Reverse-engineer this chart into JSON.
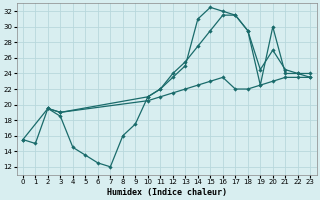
{
  "title": "",
  "xlabel": "Humidex (Indice chaleur)",
  "ylabel": "",
  "xlim": [
    -0.5,
    23.5
  ],
  "ylim": [
    11,
    33
  ],
  "yticks": [
    12,
    14,
    16,
    18,
    20,
    22,
    24,
    26,
    28,
    30,
    32
  ],
  "xticks": [
    0,
    1,
    2,
    3,
    4,
    5,
    6,
    7,
    8,
    9,
    10,
    11,
    12,
    13,
    14,
    15,
    16,
    17,
    18,
    19,
    20,
    21,
    22,
    23
  ],
  "bg_color": "#d8eef0",
  "grid_color": "#b8d8dc",
  "line_color": "#1a6b6b",
  "line1_x": [
    0,
    1,
    2,
    3,
    4,
    5,
    6,
    7,
    8,
    9,
    10,
    11,
    12,
    13,
    14,
    15,
    16,
    17,
    18,
    19,
    20,
    21,
    22,
    23
  ],
  "line1_y": [
    15.5,
    15.0,
    19.5,
    18.5,
    14.5,
    13.5,
    12.5,
    12.0,
    16.0,
    17.5,
    21.0,
    22.0,
    23.5,
    25.0,
    31.0,
    32.5,
    32.0,
    31.5,
    29.5,
    24.5,
    27.0,
    24.5,
    24.0,
    23.5
  ],
  "line2_x": [
    2,
    3,
    10,
    11,
    12,
    13,
    14,
    15,
    16,
    17,
    18,
    19,
    20,
    21,
    22,
    23
  ],
  "line2_y": [
    19.5,
    19.0,
    21.0,
    22.0,
    24.0,
    25.5,
    27.5,
    29.5,
    31.5,
    31.5,
    29.5,
    22.5,
    30.0,
    24.0,
    24.0,
    24.0
  ],
  "line3_x": [
    0,
    2,
    3,
    10,
    11,
    12,
    13,
    14,
    15,
    16,
    17,
    18,
    19,
    20,
    21,
    22,
    23
  ],
  "line3_y": [
    15.5,
    19.5,
    19.0,
    20.5,
    21.0,
    21.5,
    22.0,
    22.5,
    23.0,
    23.5,
    22.0,
    22.0,
    22.5,
    23.0,
    23.5,
    23.5,
    23.5
  ]
}
